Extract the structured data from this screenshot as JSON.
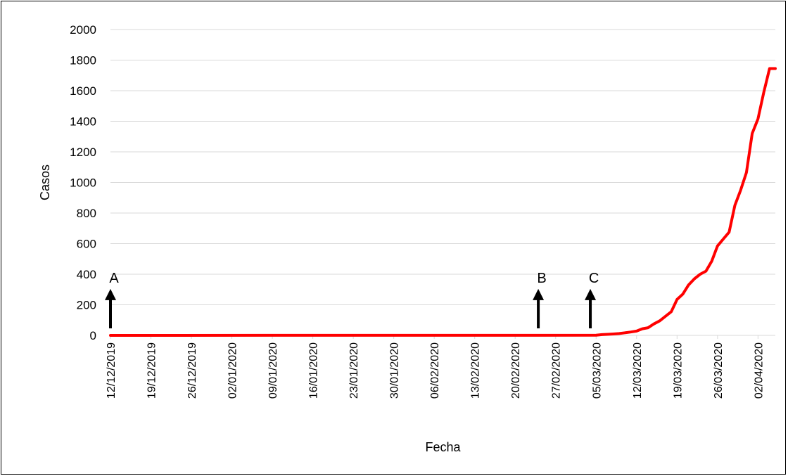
{
  "chart_data": {
    "type": "line",
    "title": "",
    "xlabel": "Fecha",
    "ylabel": "Casos",
    "ylim": [
      0,
      2000
    ],
    "yticks": [
      0,
      200,
      400,
      600,
      800,
      1000,
      1200,
      1400,
      1600,
      1800,
      2000
    ],
    "xlim": [
      "12/12/2019",
      "05/04/2020"
    ],
    "xtick_labels": [
      "12/12/2019",
      "19/12/2019",
      "26/12/2019",
      "02/01/2020",
      "09/01/2020",
      "16/01/2020",
      "23/01/2020",
      "30/01/2020",
      "06/02/2020",
      "13/02/2020",
      "20/02/2020",
      "27/02/2020",
      "05/03/2020",
      "12/03/2020",
      "19/03/2020",
      "26/03/2020",
      "02/04/2020"
    ],
    "grid": true,
    "legend": "none",
    "series": [
      {
        "color": "#ff0000",
        "x": [
          "12/12/2019",
          "05/03/2020",
          "06/03/2020",
          "07/03/2020",
          "08/03/2020",
          "09/03/2020",
          "10/03/2020",
          "11/03/2020",
          "12/03/2020",
          "13/03/2020",
          "14/03/2020",
          "15/03/2020",
          "16/03/2020",
          "17/03/2020",
          "18/03/2020",
          "19/03/2020",
          "20/03/2020",
          "21/03/2020",
          "22/03/2020",
          "23/03/2020",
          "24/03/2020",
          "25/03/2020",
          "26/03/2020",
          "27/03/2020",
          "28/03/2020",
          "29/03/2020",
          "30/03/2020",
          "31/03/2020",
          "01/04/2020",
          "02/04/2020",
          "03/04/2020",
          "04/04/2020",
          "05/04/2020"
        ],
        "y": [
          0,
          1,
          5,
          7,
          9,
          12,
          17,
          22,
          28,
          43,
          50,
          75,
          95,
          125,
          155,
          235,
          270,
          330,
          370,
          400,
          420,
          485,
          585,
          630,
          675,
          850,
          950,
          1065,
          1320,
          1415,
          1590,
          1745,
          1745
        ]
      }
    ],
    "annotations": [
      {
        "label": "A",
        "x": "12/12/2019",
        "arrow_from": 0,
        "arrow_to": 350
      },
      {
        "label": "B",
        "x": "24/02/2020",
        "arrow_from": 0,
        "arrow_to": 350
      },
      {
        "label": "C",
        "x": "04/03/2020",
        "arrow_from": 0,
        "arrow_to": 350
      }
    ]
  }
}
